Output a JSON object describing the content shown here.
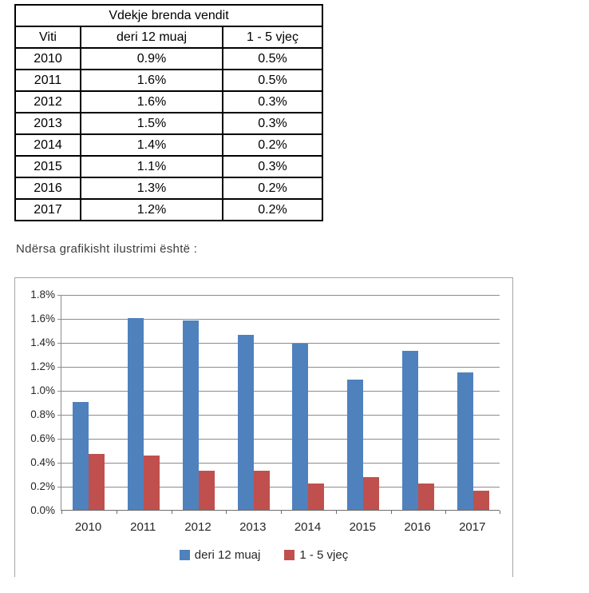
{
  "table": {
    "title": "Vdekje brenda vendit",
    "columns": [
      "Viti",
      "deri 12 muaj",
      "1 - 5 vjeç"
    ],
    "rows": [
      [
        "2010",
        "0.9%",
        "0.5%"
      ],
      [
        "2011",
        "1.6%",
        "0.5%"
      ],
      [
        "2012",
        "1.6%",
        "0.3%"
      ],
      [
        "2013",
        "1.5%",
        "0.3%"
      ],
      [
        "2014",
        "1.4%",
        "0.2%"
      ],
      [
        "2015",
        "1.1%",
        "0.3%"
      ],
      [
        "2016",
        "1.3%",
        "0.2%"
      ],
      [
        "2017",
        "1.2%",
        "0.2%"
      ]
    ]
  },
  "intro_text": "Ndërsa grafikisht ilustrimi është :",
  "chart_data": {
    "type": "bar",
    "title": "",
    "xlabel": "",
    "ylabel": "",
    "categories": [
      "2010",
      "2011",
      "2012",
      "2013",
      "2014",
      "2015",
      "2016",
      "2017"
    ],
    "series": [
      {
        "name": "deri 12 muaj",
        "color": "#4F81BD",
        "values": [
          0.9,
          1.6,
          1.58,
          1.46,
          1.39,
          1.09,
          1.33,
          1.15
        ]
      },
      {
        "name": "1 - 5 vjeç",
        "color": "#C0504D",
        "values": [
          0.47,
          0.455,
          0.33,
          0.33,
          0.22,
          0.275,
          0.22,
          0.16
        ]
      }
    ],
    "ylim": [
      0,
      1.8
    ],
    "ytick_step": 0.2,
    "ytick_labels": [
      "0.0%",
      "0.2%",
      "0.4%",
      "0.6%",
      "0.8%",
      "1.0%",
      "1.2%",
      "1.4%",
      "1.6%",
      "1.8%"
    ],
    "grid": true,
    "legend_position": "bottom"
  },
  "colors": {
    "bar_blue": "#4F81BD",
    "bar_red": "#C0504D",
    "gridline": "#8c8c8c",
    "chart_border": "#a6a6a6",
    "table_border": "#000000"
  }
}
